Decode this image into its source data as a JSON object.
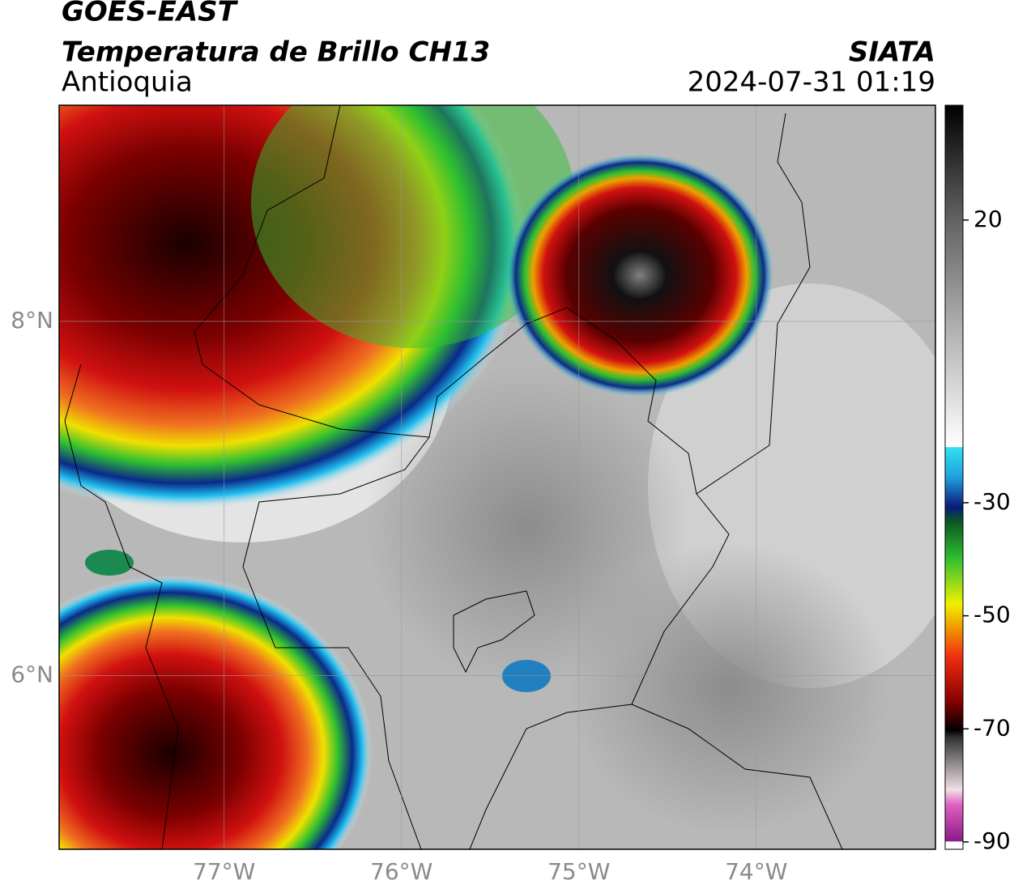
{
  "header": {
    "title": "GOES-EAST",
    "subtitle": "Temperatura de Brillo CH13",
    "region": "Antioquia",
    "source": "SIATA",
    "timestamp": "2024-07-31 01:19"
  },
  "map": {
    "xlim": [
      -77.93,
      -72.99
    ],
    "ylim": [
      5.02,
      9.22
    ],
    "xticks": [
      {
        "value": -77,
        "label": "77°W"
      },
      {
        "value": -76,
        "label": "76°W"
      },
      {
        "value": -75,
        "label": "75°W"
      },
      {
        "value": -74,
        "label": "74°W"
      }
    ],
    "yticks": [
      {
        "value": 6,
        "label": "6°N"
      },
      {
        "value": 8,
        "label": "8°N"
      }
    ],
    "grid": true
  },
  "colorbar": {
    "lim": [
      -91.3,
      40.3
    ],
    "ticks": [
      20,
      -30,
      -50,
      -70,
      -90
    ]
  }
}
